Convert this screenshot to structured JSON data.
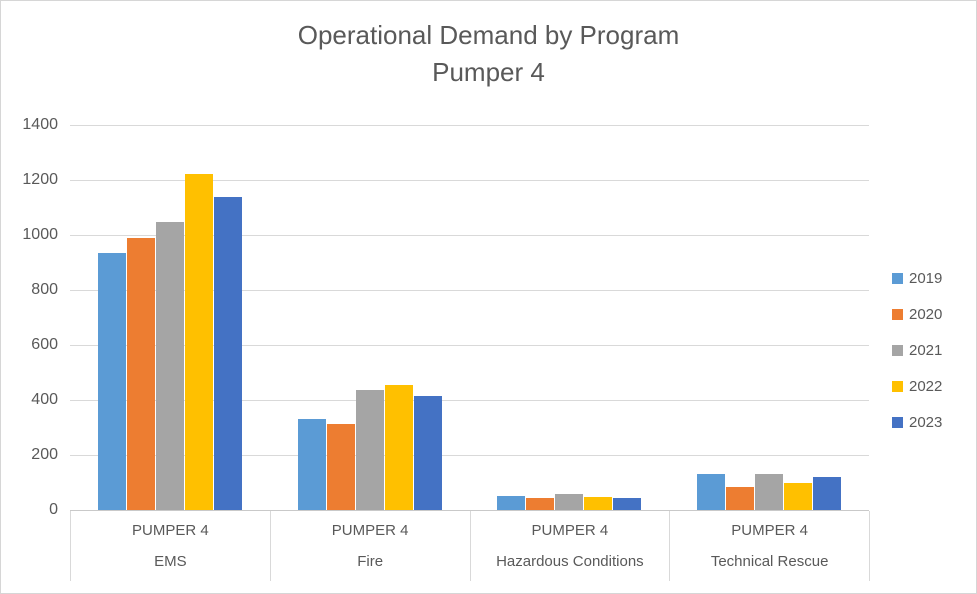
{
  "title": {
    "line1": "Operational Demand by Program",
    "line2": "Pumper 4"
  },
  "chart_data": {
    "type": "bar",
    "categories": [
      "EMS",
      "Fire",
      "Hazardous Conditions",
      "Technical Rescue"
    ],
    "category_top_labels": [
      "PUMPER 4",
      "PUMPER 4",
      "PUMPER 4",
      "PUMPER 4"
    ],
    "series": [
      {
        "name": "2019",
        "color": "#5B9BD5",
        "values": [
          935,
          330,
          52,
          130
        ]
      },
      {
        "name": "2020",
        "color": "#ED7D31",
        "values": [
          990,
          313,
          43,
          85
        ]
      },
      {
        "name": "2021",
        "color": "#A5A5A5",
        "values": [
          1047,
          435,
          57,
          132
        ]
      },
      {
        "name": "2022",
        "color": "#FFC000",
        "values": [
          1221,
          455,
          47,
          97
        ]
      },
      {
        "name": "2023",
        "color": "#4472C4",
        "values": [
          1139,
          413,
          44,
          120
        ]
      }
    ],
    "title": "Operational Demand by Program Pumper 4",
    "xlabel": "",
    "ylabel": "",
    "ylim": [
      0,
      1400
    ],
    "ytick_step": 200,
    "grid": true,
    "legend_position": "right",
    "gridline_color": "#D9D9D9",
    "text_color": "#595959"
  }
}
